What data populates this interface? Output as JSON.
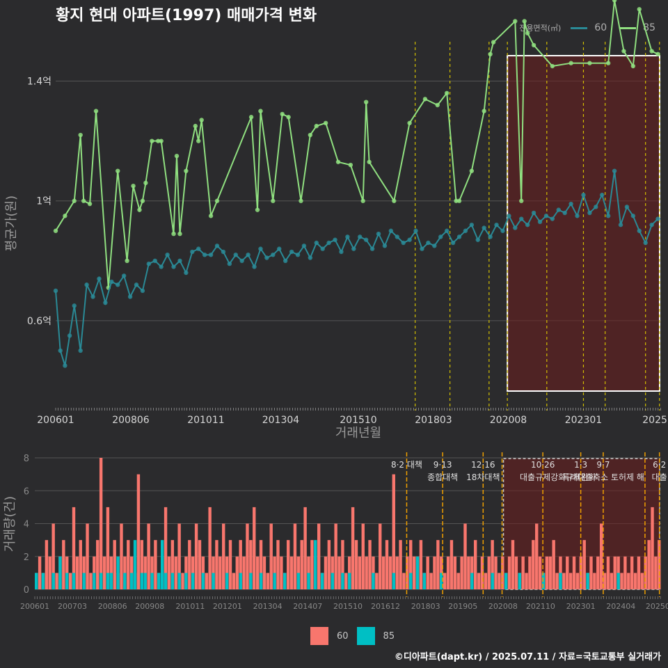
{
  "title": "황지 현대 아파트(1997) 매매가격 변화",
  "legend_top": {
    "title": "전용면적(㎡)",
    "items": [
      {
        "label": "60",
        "color": "#2a8a96"
      },
      {
        "label": "85",
        "color": "#90e080"
      }
    ]
  },
  "legend_bottom": {
    "items": [
      {
        "label": "60",
        "color": "#f8766d"
      },
      {
        "label": "85",
        "color": "#00bfc4"
      }
    ]
  },
  "credit": "©디아파트(dapt.kr) / 2025.07.11 / 자료=국토교통부 실거래가",
  "chart_data": [
    {
      "type": "line",
      "ylabel": "평균가(원)",
      "xlabel": "거래년월",
      "x_tick_labels": [
        "200601",
        "200806",
        "201011",
        "201304",
        "201510",
        "201803",
        "202008",
        "202301",
        "2025"
      ],
      "y_tick_labels": [
        "0.6억",
        "1억",
        "1.4억"
      ],
      "y_ticks": [
        0.6,
        1.0,
        1.4
      ],
      "ylim": [
        0.3,
        1.55
      ],
      "x_range": [
        2006.0,
        2025.5
      ],
      "grid": true,
      "highlight_box_x": [
        2020.55,
        2025.5
      ],
      "policy_lines": [
        2017.58,
        2018.7,
        2019.96,
        2020.55,
        2021.82,
        2023.0,
        2023.7,
        2025.0,
        2025.45
      ],
      "series": [
        {
          "name": "85",
          "color": "#90e080",
          "x": [
            2006.0,
            2006.3,
            2006.6,
            2006.8,
            2006.9,
            2007.1,
            2007.3,
            2007.7,
            2008.0,
            2008.3,
            2008.5,
            2008.7,
            2008.8,
            2008.9,
            2009.1,
            2009.3,
            2009.4,
            2009.8,
            2009.9,
            2010.0,
            2010.2,
            2010.5,
            2010.6,
            2010.7,
            2011.0,
            2011.2,
            2012.3,
            2012.5,
            2012.6,
            2013.0,
            2013.3,
            2013.5,
            2013.9,
            2014.2,
            2014.4,
            2014.7,
            2015.1,
            2015.5,
            2015.9,
            2016.0,
            2016.1,
            2016.9,
            2017.4,
            2017.9,
            2018.3,
            2018.6,
            2018.9,
            2019.0,
            2019.4,
            2019.8,
            2020.0,
            2020.1,
            2020.8,
            2021.0,
            2021.1,
            2021.2,
            2021.4,
            2022.0,
            2022.6,
            2023.2,
            2023.8,
            2024.0,
            2024.3,
            2024.6,
            2024.8,
            2025.2,
            2025.4
          ],
          "y": [
            0.9,
            0.95,
            1.0,
            1.22,
            1.0,
            0.99,
            1.3,
            0.71,
            1.1,
            0.8,
            1.05,
            0.97,
            1.0,
            1.06,
            1.2,
            1.2,
            1.2,
            0.89,
            1.15,
            0.89,
            1.1,
            1.25,
            1.2,
            1.27,
            0.95,
            1.0,
            1.28,
            0.97,
            1.3,
            1.0,
            1.29,
            1.28,
            1.0,
            1.22,
            1.25,
            1.26,
            1.13,
            1.12,
            1.0,
            1.33,
            1.13,
            1.0,
            1.26,
            1.34,
            1.32,
            1.36,
            1.0,
            1.0,
            1.1,
            1.3,
            1.49,
            1.53,
            1.6,
            1.0,
            1.6,
            1.56,
            1.52,
            1.45,
            1.46,
            1.46,
            1.46,
            1.67,
            1.5,
            1.45,
            1.64,
            1.5,
            1.49
          ]
        },
        {
          "name": "60",
          "color": "#2a8a96",
          "x": [
            2006.0,
            2006.15,
            2006.3,
            2006.45,
            2006.6,
            2006.8,
            2007.0,
            2007.2,
            2007.4,
            2007.6,
            2007.8,
            2008.0,
            2008.2,
            2008.4,
            2008.6,
            2008.8,
            2009.0,
            2009.2,
            2009.4,
            2009.6,
            2009.8,
            2010.0,
            2010.2,
            2010.4,
            2010.6,
            2010.8,
            2011.0,
            2011.2,
            2011.4,
            2011.6,
            2011.8,
            2012.0,
            2012.2,
            2012.4,
            2012.6,
            2012.8,
            2013.0,
            2013.2,
            2013.4,
            2013.6,
            2013.8,
            2014.0,
            2014.2,
            2014.4,
            2014.6,
            2014.8,
            2015.0,
            2015.2,
            2015.4,
            2015.6,
            2015.8,
            2016.0,
            2016.2,
            2016.4,
            2016.6,
            2016.8,
            2017.0,
            2017.2,
            2017.4,
            2017.6,
            2017.8,
            2018.0,
            2018.2,
            2018.4,
            2018.6,
            2018.8,
            2019.0,
            2019.2,
            2019.4,
            2019.6,
            2019.8,
            2020.0,
            2020.2,
            2020.4,
            2020.6,
            2020.8,
            2021.0,
            2021.2,
            2021.4,
            2021.6,
            2021.8,
            2022.0,
            2022.2,
            2022.4,
            2022.6,
            2022.8,
            2023.0,
            2023.2,
            2023.4,
            2023.6,
            2023.8,
            2024.0,
            2024.2,
            2024.4,
            2024.6,
            2024.8,
            2025.0,
            2025.2,
            2025.4
          ],
          "y": [
            0.7,
            0.5,
            0.45,
            0.55,
            0.65,
            0.5,
            0.72,
            0.68,
            0.74,
            0.66,
            0.73,
            0.72,
            0.75,
            0.68,
            0.72,
            0.7,
            0.79,
            0.8,
            0.78,
            0.82,
            0.78,
            0.8,
            0.76,
            0.83,
            0.84,
            0.82,
            0.82,
            0.85,
            0.83,
            0.79,
            0.82,
            0.8,
            0.82,
            0.78,
            0.84,
            0.81,
            0.82,
            0.84,
            0.8,
            0.83,
            0.82,
            0.85,
            0.81,
            0.86,
            0.84,
            0.86,
            0.87,
            0.83,
            0.88,
            0.84,
            0.88,
            0.87,
            0.84,
            0.89,
            0.85,
            0.9,
            0.88,
            0.86,
            0.87,
            0.9,
            0.84,
            0.86,
            0.85,
            0.88,
            0.9,
            0.86,
            0.88,
            0.9,
            0.92,
            0.87,
            0.91,
            0.88,
            0.92,
            0.9,
            0.95,
            0.91,
            0.94,
            0.92,
            0.96,
            0.93,
            0.95,
            0.94,
            0.97,
            0.96,
            0.99,
            0.95,
            1.02,
            0.96,
            0.98,
            1.02,
            0.95,
            1.1,
            0.92,
            0.98,
            0.95,
            0.9,
            0.86,
            0.92,
            0.94
          ]
        }
      ]
    },
    {
      "type": "bar",
      "ylabel": "거래량(건)",
      "x_tick_labels": [
        "200601",
        "200703",
        "200806",
        "200908",
        "201011",
        "201201",
        "201304",
        "201407",
        "201510",
        "201612",
        "201803",
        "201905",
        "202008",
        "202110",
        "202301",
        "202404",
        "20250"
      ],
      "y_tick_labels": [
        "0",
        "2",
        "4",
        "6",
        "8"
      ],
      "y_ticks": [
        0,
        2,
        4,
        6,
        8
      ],
      "ylim": [
        0,
        8
      ],
      "x_range": [
        2006.0,
        2025.5
      ],
      "grid": true,
      "highlight_box_x": [
        2020.55,
        2025.5
      ],
      "policy_lines": [
        2017.58,
        2018.7,
        2019.96,
        2020.55,
        2021.82,
        2023.0,
        2023.7,
        2025.0,
        2025.45
      ],
      "policy_labels": [
        {
          "x": 2017.58,
          "line1": "8·2 대책",
          "line2": ""
        },
        {
          "x": 2018.7,
          "line1": "9·13",
          "line2": "종합대책"
        },
        {
          "x": 2019.96,
          "line1": "12·16",
          "line2": "18차대책"
        },
        {
          "x": 2021.82,
          "line1": "10·26",
          "line2": "대출규제강화"
        },
        {
          "x": 2023.0,
          "line1": "1·3",
          "line2": "규제완화"
        },
        {
          "x": 2023.7,
          "line1": "9·7",
          "line2": "특례대출축소 토허제 해"
        },
        {
          "x": 2025.45,
          "line1": "6·2",
          "line2": "대출"
        }
      ],
      "series": [
        {
          "name": "60",
          "color": "#f8766d",
          "values": [
            1,
            2,
            1,
            3,
            2,
            4,
            1,
            2,
            3,
            2,
            1,
            5,
            2,
            3,
            2,
            4,
            1,
            2,
            3,
            8,
            2,
            5,
            2,
            3,
            1,
            4,
            2,
            3,
            2,
            1,
            7,
            3,
            2,
            4,
            2,
            3,
            1,
            2,
            5,
            2,
            3,
            2,
            4,
            1,
            2,
            3,
            2,
            4,
            3,
            2,
            1,
            5,
            2,
            3,
            2,
            4,
            2,
            3,
            1,
            2,
            3,
            2,
            4,
            3,
            5,
            2,
            3,
            2,
            1,
            4,
            2,
            3,
            2,
            1,
            3,
            2,
            4,
            2,
            3,
            5,
            2,
            3,
            2,
            4,
            1,
            2,
            3,
            2,
            4,
            2,
            3,
            1,
            2,
            5,
            3,
            2,
            4,
            2,
            3,
            2,
            1,
            4,
            2,
            3,
            2,
            7,
            2,
            3,
            1,
            2,
            3,
            2,
            2,
            3,
            1,
            2,
            1,
            2,
            3,
            2,
            1,
            2,
            3,
            2,
            1,
            2,
            4,
            2,
            2,
            3,
            1,
            2,
            1,
            2,
            3,
            2,
            1,
            2,
            1,
            2,
            3,
            2,
            1,
            2,
            1,
            2,
            3,
            4,
            2,
            1,
            2,
            2,
            3,
            1,
            2,
            1,
            2,
            1,
            2,
            1,
            2,
            3,
            1,
            2,
            1,
            2,
            4,
            1,
            2,
            1,
            2,
            2,
            1,
            2,
            1,
            2,
            1,
            2,
            1,
            2,
            3,
            5,
            2,
            3
          ]
        },
        {
          "name": "85",
          "color": "#00bfc4",
          "values": [
            1,
            0,
            1,
            0,
            0,
            1,
            0,
            2,
            0,
            1,
            0,
            1,
            0,
            0,
            1,
            0,
            0,
            1,
            0,
            1,
            0,
            1,
            1,
            0,
            2,
            0,
            1,
            0,
            1,
            3,
            0,
            1,
            1,
            0,
            1,
            0,
            1,
            3,
            1,
            0,
            1,
            0,
            1,
            0,
            1,
            0,
            1,
            0,
            0,
            1,
            0,
            0,
            1,
            0,
            0,
            0,
            1,
            0,
            0,
            0,
            1,
            0,
            0,
            1,
            0,
            0,
            1,
            0,
            0,
            0,
            1,
            0,
            0,
            1,
            0,
            0,
            0,
            1,
            0,
            0,
            1,
            0,
            3,
            0,
            1,
            0,
            0,
            1,
            0,
            0,
            1,
            0,
            1,
            0,
            0,
            0,
            0,
            0,
            0,
            1,
            0,
            0,
            0,
            0,
            0,
            1,
            0,
            0,
            0,
            0,
            1,
            0,
            2,
            0,
            1,
            0,
            0,
            0,
            0,
            1,
            0,
            0,
            0,
            0,
            0,
            0,
            0,
            0,
            1,
            0,
            0,
            0,
            0,
            0,
            1,
            0,
            0,
            0,
            1,
            0,
            0,
            0,
            1,
            0,
            0,
            0,
            0,
            0,
            0,
            1,
            0,
            0,
            0,
            0,
            1,
            0,
            0,
            0,
            0,
            0,
            0,
            0,
            1,
            0,
            0,
            0,
            0,
            0,
            0,
            0,
            0,
            1,
            0,
            0,
            0,
            0,
            0,
            0,
            0,
            0,
            0,
            0,
            0,
            0
          ]
        }
      ]
    }
  ]
}
